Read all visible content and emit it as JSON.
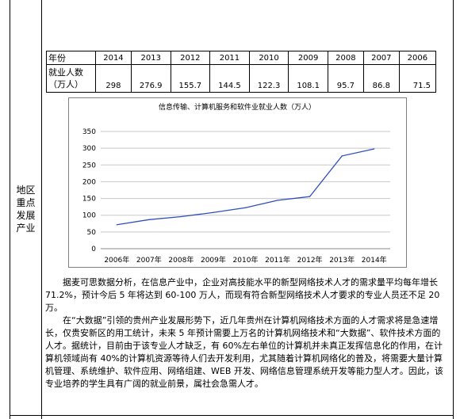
{
  "side_label": [
    "地区",
    "重点",
    "发展",
    "产业"
  ],
  "table": {
    "row1": {
      "label": "年份",
      "values": [
        "2014",
        "2013",
        "2012",
        "2011",
        "2010",
        "2009",
        "2008",
        "2007",
        "2006"
      ]
    },
    "row2": {
      "label_line1": "就业人数",
      "label_line2": "（万人）",
      "values": [
        "298",
        "276.9",
        "155.7",
        "144.5",
        "122.3",
        "108.1",
        "95.7",
        "86.8",
        "71.5"
      ]
    }
  },
  "chart_data": {
    "type": "line",
    "title": "信息传输、计算机服务和软件业就业人数（万人）",
    "categories": [
      "2006年",
      "2007年",
      "2008年",
      "2009年",
      "2010年",
      "2011年",
      "2012年",
      "2013年",
      "2014年"
    ],
    "series": [
      {
        "values": [
          71.5,
          86.8,
          95.7,
          108.1,
          122.3,
          144.5,
          155.7,
          276.9,
          298
        ]
      }
    ],
    "ylim": [
      0,
      350
    ],
    "yticks": [
      "0",
      "50",
      "100",
      "150",
      "200",
      "250",
      "300",
      "350"
    ],
    "grid": true,
    "line_color": "#2f4fbf"
  },
  "paragraphs": {
    "p1": "据麦可思数据分析，在信息产业中，企业对高技能水平的新型网络技术人才的需求量平均每年增长 71.2%，预计今后 5 年将达到 60-100 万人，而现有符合新型网络技术人才要求的专业人员还不足 20 万。",
    "p2": "在“大数据”引领的贵州产业发展形势下，近几年贵州在计算机网络技术方面的人才需求将是急速增长，仅贵安新区的用工统计，未来 5 年预计需要上万名的计算机网络技术和“大数据”、软件技术方面的人才。据统计，目前由于该专业人才缺乏，有 60%左右单位的计算机并未真正发挥信息化的作用，在计算机领域尚有 40%的计算机资源等待人们去开发利用，尤其随着计算机网络化的普及，将需要大量计算机管理、系统维护、软件应用、网络组建、WEB 开发、网络信息管理系统开发等能力型人才。因此，该专业培养的学生具有广阔的就业前景，属社会急需人才。"
  }
}
